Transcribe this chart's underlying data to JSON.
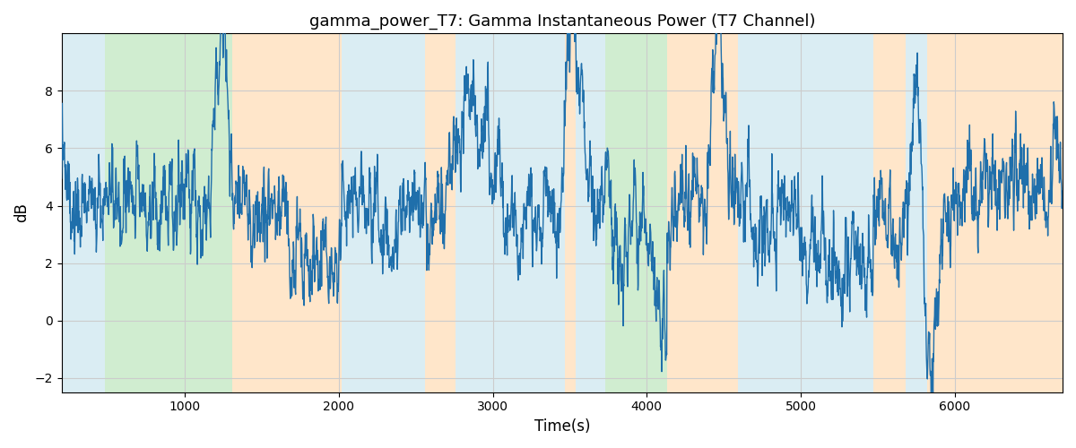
{
  "title": "gamma_power_T7: Gamma Instantaneous Power (T7 Channel)",
  "xlabel": "Time(s)",
  "ylabel": "dB",
  "xlim": [
    200,
    6700
  ],
  "ylim": [
    -2.5,
    10.0
  ],
  "yticks": [
    -2,
    0,
    2,
    4,
    6,
    8
  ],
  "xticks": [
    1000,
    2000,
    3000,
    4000,
    5000,
    6000
  ],
  "line_color": "#1f6fab",
  "line_width": 1.0,
  "grid_color": "#cccccc",
  "colored_bands": [
    {
      "xmin": 200,
      "xmax": 480,
      "color": "#add8e6",
      "alpha": 0.45
    },
    {
      "xmin": 480,
      "xmax": 1310,
      "color": "#98d898",
      "alpha": 0.45
    },
    {
      "xmin": 1310,
      "xmax": 2020,
      "color": "#ffc88a",
      "alpha": 0.45
    },
    {
      "xmin": 2020,
      "xmax": 2560,
      "color": "#add8e6",
      "alpha": 0.45
    },
    {
      "xmin": 2560,
      "xmax": 2760,
      "color": "#ffc88a",
      "alpha": 0.45
    },
    {
      "xmin": 2760,
      "xmax": 3470,
      "color": "#add8e6",
      "alpha": 0.45
    },
    {
      "xmin": 3470,
      "xmax": 3540,
      "color": "#ffc88a",
      "alpha": 0.45
    },
    {
      "xmin": 3540,
      "xmax": 3730,
      "color": "#add8e6",
      "alpha": 0.45
    },
    {
      "xmin": 3730,
      "xmax": 4130,
      "color": "#98d898",
      "alpha": 0.45
    },
    {
      "xmin": 4130,
      "xmax": 4590,
      "color": "#ffc88a",
      "alpha": 0.45
    },
    {
      "xmin": 4590,
      "xmax": 5470,
      "color": "#add8e6",
      "alpha": 0.45
    },
    {
      "xmin": 5470,
      "xmax": 5680,
      "color": "#ffc88a",
      "alpha": 0.45
    },
    {
      "xmin": 5680,
      "xmax": 5820,
      "color": "#add8e6",
      "alpha": 0.45
    },
    {
      "xmin": 5820,
      "xmax": 6700,
      "color": "#ffc88a",
      "alpha": 0.45
    }
  ],
  "seed": 137,
  "n_points": 3200,
  "time_start": 200,
  "time_end": 6700
}
